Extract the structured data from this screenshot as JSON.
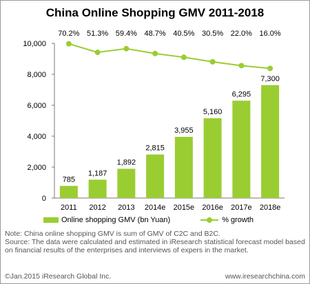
{
  "title": "China Online  Shopping GMV 2011-2018",
  "chart_data": {
    "type": "bar",
    "categories": [
      "2011",
      "2012",
      "2013",
      "2014e",
      "2015e",
      "2016e",
      "2017e",
      "2018e"
    ],
    "series": [
      {
        "name": "Online shopping GMV (bn Yuan)",
        "type": "bar",
        "values": [
          785,
          1187,
          1892,
          2815,
          3955,
          5160,
          6295,
          7300
        ],
        "labels": [
          "785",
          "1,187",
          "1,892",
          "2,815",
          "3,955",
          "5,160",
          "6,295",
          "7,300"
        ]
      },
      {
        "name": "% growth",
        "type": "line",
        "values": [
          70.2,
          51.3,
          59.4,
          48.7,
          40.5,
          30.5,
          22.0,
          16.0
        ],
        "labels": [
          "70.2%",
          "51.3%",
          "59.4%",
          "48.7%",
          "40.5%",
          "30.5%",
          "22.0%",
          "16.0%"
        ]
      }
    ],
    "yticks": [
      "0",
      "2,000",
      "4,000",
      "6,000",
      "8,000",
      "10,000"
    ],
    "ylim": [
      0,
      10000
    ],
    "grid": false,
    "legend_position": "bottom",
    "colors": {
      "bar": "#9acd32",
      "line": "#9acd32"
    }
  },
  "legend": {
    "bar_label": "Online shopping GMV (bn Yuan)",
    "line_label": "% growth"
  },
  "note": {
    "line1": "Note: China online shopping GMV is sum of GMV of C2C and B2C.",
    "line2": "Source: The data were calculated and estimated in iResearch statistical forecast model based on financial results of the enterprises and interviews of expers in the market."
  },
  "footer": {
    "copyright": "©Jan.2015 iResearch Global Inc.",
    "website": "www.iresearchchina.com"
  }
}
